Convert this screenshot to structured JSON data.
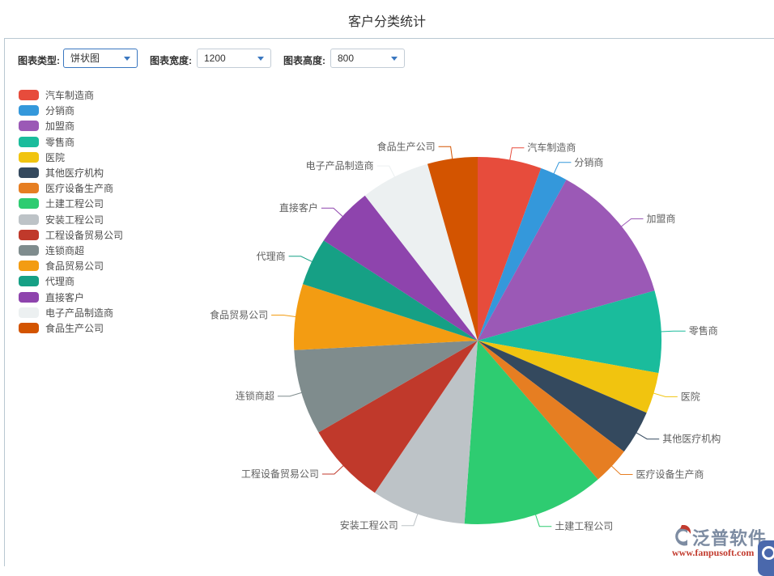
{
  "page": {
    "title": "客户分类统计"
  },
  "toolbar": {
    "chart_type": {
      "label": "图表类型:",
      "value": "饼状图"
    },
    "chart_width": {
      "label": "图表宽度:",
      "value": "1200"
    },
    "chart_height": {
      "label": "图表高度:",
      "value": "800"
    }
  },
  "ui_colors": {
    "accent_blue": "#3a77c0",
    "panel_border": "#b9c8d2",
    "float_button_blue": "#4a68ac"
  },
  "chart_data": {
    "type": "pie",
    "title": "客户分类统计",
    "legend_position": "left",
    "label_style": "outside-leader-lines",
    "start_angle_deg_from_top": 0,
    "series": [
      {
        "name": "汽车制造商",
        "value": 5.6,
        "color": "#e74c3c"
      },
      {
        "name": "分销商",
        "value": 2.4,
        "color": "#3498db"
      },
      {
        "name": "加盟商",
        "value": 12.6,
        "color": "#9b59b6"
      },
      {
        "name": "零售商",
        "value": 7.2,
        "color": "#1abc9c"
      },
      {
        "name": "医院",
        "value": 3.6,
        "color": "#f1c40f"
      },
      {
        "name": "其他医疗机构",
        "value": 3.9,
        "color": "#34495e"
      },
      {
        "name": "医疗设备生产商",
        "value": 3.3,
        "color": "#e67e22"
      },
      {
        "name": "土建工程公司",
        "value": 12.5,
        "color": "#2ecc71"
      },
      {
        "name": "安装工程公司",
        "value": 8.3,
        "color": "#bdc3c7"
      },
      {
        "name": "工程设备贸易公司",
        "value": 7.2,
        "color": "#c0392b"
      },
      {
        "name": "连锁商超",
        "value": 7.5,
        "color": "#7f8c8d"
      },
      {
        "name": "食品贸易公司",
        "value": 5.8,
        "color": "#f39c12"
      },
      {
        "name": "代理商",
        "value": 4.2,
        "color": "#16a085"
      },
      {
        "name": "直接客户",
        "value": 5.3,
        "color": "#8e44ad"
      },
      {
        "name": "电子产品制造商",
        "value": 6.1,
        "color": "#ecf0f1"
      },
      {
        "name": "食品生产公司",
        "value": 4.4,
        "color": "#d35400"
      }
    ]
  },
  "watermark": {
    "brand": "泛普软件",
    "url": "www.fanpusoft.com",
    "brand_color": "#7d8ca2",
    "url_color": "#c23b2e"
  }
}
